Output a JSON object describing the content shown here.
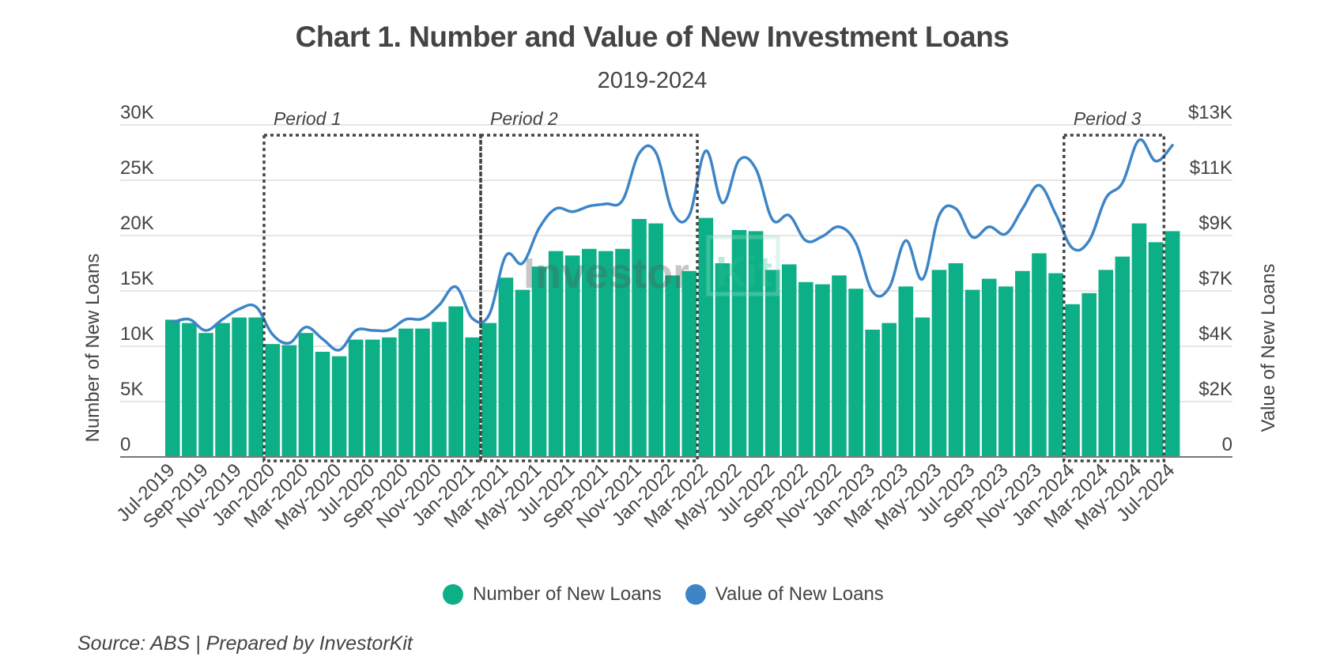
{
  "header": {
    "title": "Chart 1. Number and Value of New Investment Loans",
    "subtitle": "2019-2024"
  },
  "legend": {
    "items": [
      {
        "label": "Number of New Loans",
        "color": "#0db086"
      },
      {
        "label": "Value of New Loans",
        "color": "#3d85c6"
      }
    ]
  },
  "footer": {
    "source": "Source: ABS | Prepared by InvestorKit"
  },
  "watermark": {
    "text_main": "Investor",
    "text_box": "Kit"
  },
  "annotations": [
    {
      "label": "Period 1",
      "start_index": 6,
      "end_index": 18
    },
    {
      "label": "Period 2",
      "start_index": 19,
      "end_index": 31
    },
    {
      "label": "Period 3",
      "start_index": 54,
      "end_index": 59
    }
  ],
  "chart_data": {
    "type": "bar",
    "title": "Chart 1. Number and Value of New Investment Loans",
    "subtitle": "2019-2024",
    "xlabel": "",
    "ylabel": "Number of New Loans",
    "y2label": "Value of New Loans",
    "ylim": [
      0,
      30000
    ],
    "y2lim": [
      0,
      13200
    ],
    "grid": true,
    "legend_position": "bottom",
    "y_ticks": [
      "0",
      "5K",
      "10K",
      "15K",
      "20K",
      "25K",
      "30K"
    ],
    "y2_ticks": [
      "0",
      "$2K",
      "$4K",
      "$7K",
      "$9K",
      "$11K",
      "$13K"
    ],
    "x_tick_labels": [
      "Jul-2019",
      "Sep-2019",
      "Nov-2019",
      "Jan-2020",
      "Mar-2020",
      "May-2020",
      "Jul-2020",
      "Sep-2020",
      "Nov-2020",
      "Jan-2021",
      "Mar-2021",
      "May-2021",
      "Jul-2021",
      "Sep-2021",
      "Nov-2021",
      "Jan-2022",
      "Mar-2022",
      "May-2022",
      "Jul-2022",
      "Sep-2022",
      "Nov-2022",
      "Jan-2023",
      "Mar-2023",
      "May-2023",
      "Jul-2023",
      "Sep-2023",
      "Nov-2023",
      "Jan-2024",
      "Mar-2024",
      "May-2024",
      "Jul-2024"
    ],
    "categories": [
      "Jul-2019",
      "Aug-2019",
      "Sep-2019",
      "Oct-2019",
      "Nov-2019",
      "Dec-2019",
      "Jan-2020",
      "Feb-2020",
      "Mar-2020",
      "Apr-2020",
      "May-2020",
      "Jun-2020",
      "Jul-2020",
      "Aug-2020",
      "Sep-2020",
      "Oct-2020",
      "Nov-2020",
      "Dec-2020",
      "Jan-2021",
      "Feb-2021",
      "Mar-2021",
      "Apr-2021",
      "May-2021",
      "Jun-2021",
      "Jul-2021",
      "Aug-2021",
      "Sep-2021",
      "Oct-2021",
      "Nov-2021",
      "Dec-2021",
      "Jan-2022",
      "Feb-2022",
      "Mar-2022",
      "Apr-2022",
      "May-2022",
      "Jun-2022",
      "Jul-2022",
      "Aug-2022",
      "Sep-2022",
      "Oct-2022",
      "Nov-2022",
      "Dec-2022",
      "Jan-2023",
      "Feb-2023",
      "Mar-2023",
      "Apr-2023",
      "May-2023",
      "Jun-2023",
      "Jul-2023",
      "Aug-2023",
      "Sep-2023",
      "Oct-2023",
      "Nov-2023",
      "Dec-2023",
      "Jan-2024",
      "Feb-2024",
      "Mar-2024",
      "Apr-2024",
      "May-2024",
      "Jun-2024",
      "Jul-2024"
    ],
    "series": [
      {
        "name": "Number of New Loans",
        "type": "bar",
        "axis": "left",
        "color": "#0db086",
        "values": [
          12400,
          12100,
          11200,
          12100,
          12600,
          12600,
          10200,
          10100,
          11200,
          9500,
          9100,
          10600,
          10600,
          10800,
          11600,
          11600,
          12200,
          13600,
          10800,
          12100,
          16200,
          15100,
          17200,
          18600,
          18200,
          18800,
          18600,
          18800,
          21500,
          21100,
          16400,
          16800,
          21600,
          17500,
          20500,
          20400,
          16900,
          17400,
          15800,
          15600,
          16400,
          15200,
          11500,
          12100,
          15400,
          12600,
          16900,
          17500,
          15100,
          16100,
          15400,
          16800,
          18400,
          16600,
          13800,
          14800,
          16900,
          18100,
          21100,
          19400,
          20400
        ]
      },
      {
        "name": "Value of New Loans",
        "type": "line",
        "axis": "right",
        "color": "#3d85c6",
        "values": [
          5350,
          5470,
          5030,
          5470,
          5880,
          5970,
          4870,
          4530,
          5160,
          4690,
          4250,
          5030,
          5030,
          5050,
          5470,
          5500,
          6040,
          6760,
          5500,
          5660,
          8000,
          7700,
          9100,
          9870,
          9750,
          9970,
          10060,
          10200,
          12070,
          12100,
          9750,
          9600,
          12170,
          10100,
          11800,
          11450,
          9430,
          9600,
          8600,
          8770,
          9150,
          8500,
          6570,
          6730,
          8600,
          7070,
          9600,
          9870,
          8740,
          9150,
          8870,
          9870,
          10800,
          9650,
          8300,
          8600,
          10280,
          10900,
          12600,
          11760,
          12390
        ]
      }
    ]
  }
}
